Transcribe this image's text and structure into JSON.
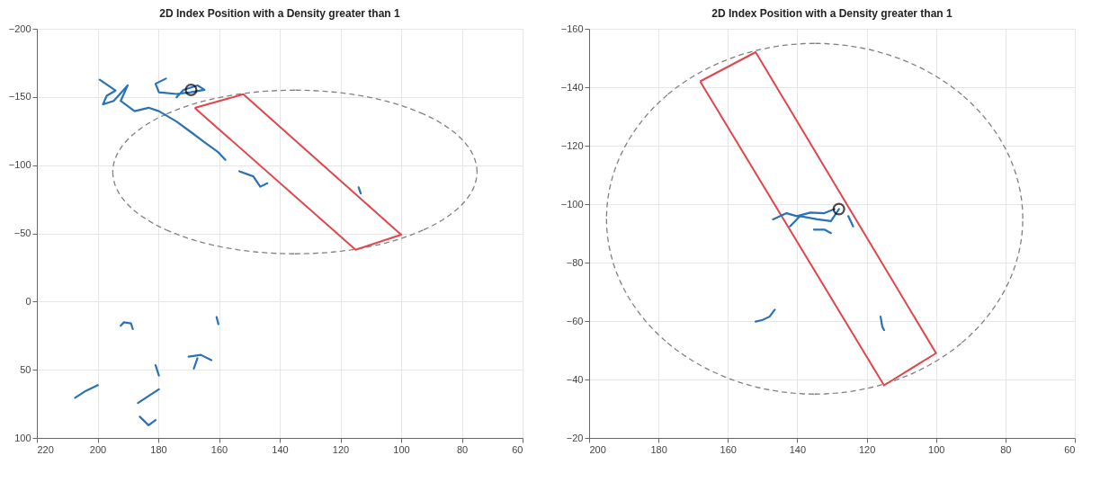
{
  "chart_data": [
    {
      "type": "line",
      "title": "2D Index Position with a Density greater than 1",
      "xlim": [
        220,
        60
      ],
      "xticks": [
        220,
        200,
        180,
        160,
        140,
        120,
        100,
        80,
        60
      ],
      "ylim": [
        100,
        -200
      ],
      "yticks": [
        -200,
        -150,
        -100,
        -50,
        0,
        50,
        100
      ],
      "grid": true,
      "marker": "none",
      "series": [
        {
          "color": "#2a72b5",
          "line_style": "solid",
          "x": [
            199.3,
            194.1,
            197.0,
            198.2,
            194.7,
            190.1,
            192.4,
            187.8,
            183.2,
            179.8,
            174.0,
            169.4,
            164.8,
            160.2,
            157.9,
            null,
            144.1,
            146.4,
            148.7,
            153.3,
            null,
            177.5,
            180.9,
            179.8,
            174.0,
            169.4,
            164.8,
            167.1,
            171.7,
            174.0,
            null,
            113.3,
            114.0,
            null,
            188.4,
            189.0,
            191.3,
            192.4,
            null,
            160.2,
            160.8,
            null,
            162.5,
            166.0,
            170.0,
            null,
            167.1,
            168.3,
            null,
            179.8,
            180.9,
            null,
            199.9,
            203.9,
            207.4,
            null,
            179.8,
            183.2,
            186.7,
            null,
            180.9,
            183.2,
            186.1
          ],
          "values": [
            -162.7,
            -154.7,
            -150.9,
            -144.6,
            -147.1,
            -158.5,
            -147.1,
            -139.6,
            -142.1,
            -139.6,
            -132.0,
            -124.5,
            -116.9,
            -109.4,
            -103.9,
            null,
            -86.7,
            -84.2,
            -91.8,
            -95.5,
            null,
            -163.5,
            -159.7,
            -153.4,
            -152.2,
            -153.4,
            -155.2,
            -158.5,
            -155.2,
            -149.7,
            null,
            -79.2,
            -83.7,
            null,
            20.2,
            16.0,
            15.2,
            17.7,
            null,
            16.5,
            11.4,
            null,
            42.9,
            39.1,
            40.4,
            null,
            41.6,
            49.2,
            null,
            54.2,
            46.7,
            null,
            61.3,
            65.5,
            70.6,
            null,
            64.3,
            69.3,
            74.4,
            null,
            86.9,
            90.7,
            84.4
          ]
        },
        {
          "type": "scatter",
          "marker": "circle",
          "color": "#000000",
          "x": [
            169.2
          ],
          "values": [
            -155.2
          ]
        }
      ]
    },
    {
      "type": "line",
      "title": "2D Index Position with a Density greater than 1",
      "xlim": [
        200,
        60
      ],
      "xticks": [
        200,
        180,
        160,
        140,
        120,
        100,
        80,
        60
      ],
      "ylim": [
        -20,
        -160
      ],
      "yticks": [
        -160,
        -140,
        -120,
        -100,
        -80,
        -60,
        -40,
        -20
      ],
      "grid": true,
      "marker": "none",
      "series": [
        {
          "color": "#2a72b5",
          "line_style": "solid",
          "x": [
            129.3,
            132.2,
            136.2,
            140.1,
            143.1,
            147.0,
            null,
            128.0,
            130.3,
            134.2,
            139.2,
            142.1,
            null,
            130.3,
            132.2,
            135.2,
            null,
            123.9,
            125.3,
            null,
            146.5,
            148.0,
            150.0,
            152.0,
            null,
            115.0,
            115.5,
            116.0
          ],
          "values": [
            -98.3,
            -96.9,
            -97.1,
            -95.9,
            -96.9,
            -94.8,
            null,
            -98.3,
            -94.2,
            -94.8,
            -95.9,
            -92.4,
            null,
            -90.1,
            -91.3,
            -91.3,
            null,
            -92.4,
            -95.9,
            null,
            -63.9,
            -61.5,
            -60.4,
            -59.8,
            null,
            -56.9,
            -58.1,
            -61.5
          ]
        },
        {
          "type": "scatter",
          "marker": "circle",
          "color": "#000000",
          "x": [
            128.0
          ],
          "values": [
            -98.3
          ]
        }
      ]
    }
  ]
}
